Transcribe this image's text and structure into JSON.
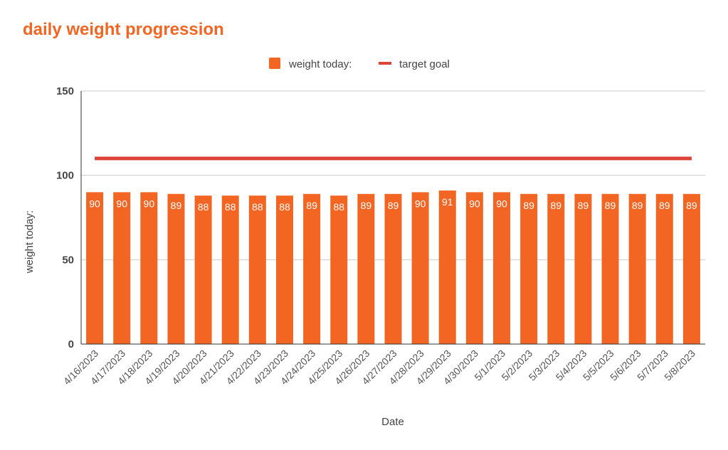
{
  "chart_data": {
    "type": "bar",
    "title": "daily weight progression",
    "xlabel": "Date",
    "ylabel": "weight today:",
    "ylim": [
      0,
      150
    ],
    "yticks": [
      0,
      50,
      100,
      150
    ],
    "grid": true,
    "legend_position": "top-center",
    "categories": [
      "4/16/2023",
      "4/17/2023",
      "4/18/2023",
      "4/19/2023",
      "4/20/2023",
      "4/21/2023",
      "4/22/2023",
      "4/23/2023",
      "4/24/2023",
      "4/25/2023",
      "4/26/2023",
      "4/27/2023",
      "4/28/2023",
      "4/29/2023",
      "4/30/2023",
      "5/1/2023",
      "5/2/2023",
      "5/3/2023",
      "5/4/2023",
      "5/5/2023",
      "5/6/2023",
      "5/7/2023",
      "5/8/2023"
    ],
    "series": [
      {
        "name": "weight today:",
        "kind": "bar",
        "color": "#f26522",
        "values": [
          90,
          90,
          90,
          89,
          88,
          88,
          88,
          88,
          89,
          88,
          89,
          89,
          90,
          91,
          90,
          90,
          89,
          89,
          89,
          89,
          89,
          89,
          89
        ]
      },
      {
        "name": "target goal",
        "kind": "line",
        "color": "#db4437",
        "values": [
          110,
          110,
          110,
          110,
          110,
          110,
          110,
          110,
          110,
          110,
          110,
          110,
          110,
          110,
          110,
          110,
          110,
          110,
          110,
          110,
          110,
          110,
          110
        ]
      }
    ]
  }
}
